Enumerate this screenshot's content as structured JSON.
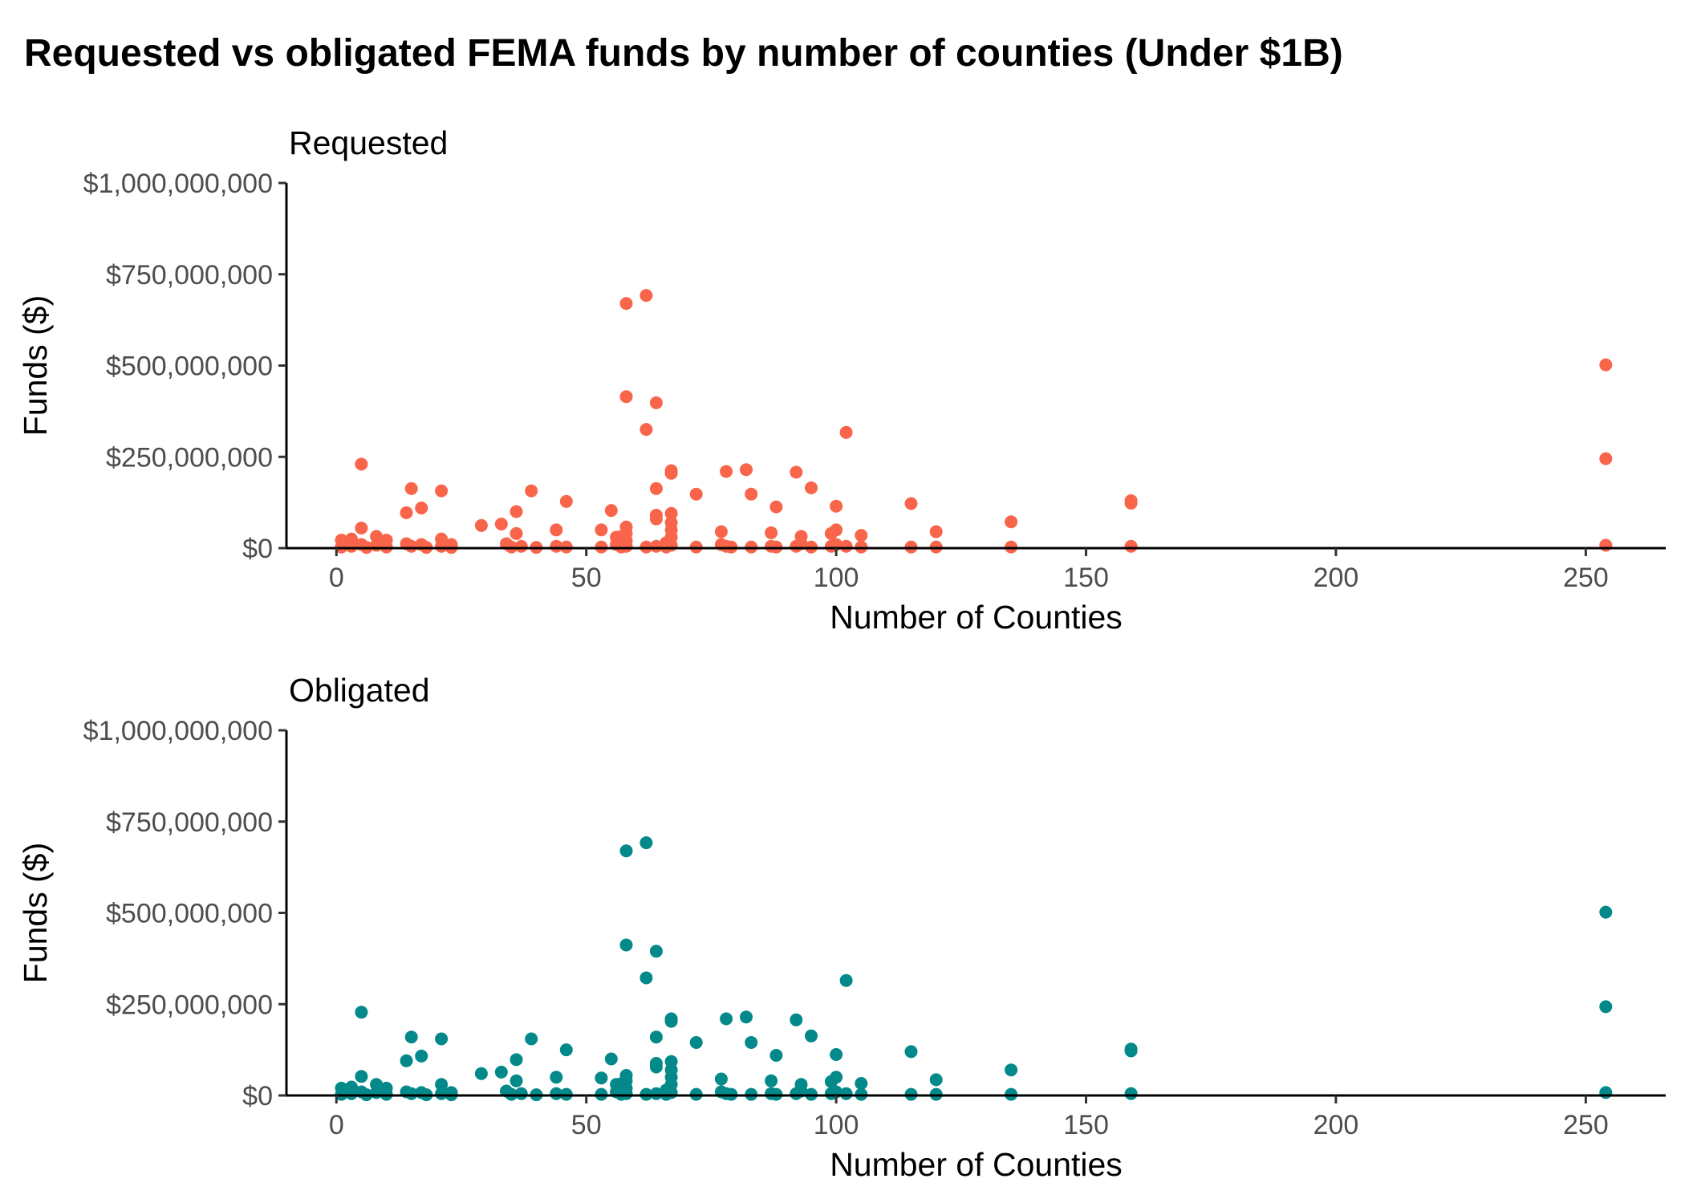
{
  "title": "Requested vs obligated FEMA funds by number of counties (Under $1B)",
  "chart_data": [
    {
      "type": "scatter",
      "title": "Requested",
      "xlabel": "Number of Counties",
      "ylabel": "Funds ($)",
      "color": "#F8654A",
      "xlim": [
        -10,
        266
      ],
      "ylim": [
        0,
        1000000000
      ],
      "xticks": [
        0,
        50,
        100,
        150,
        200,
        250
      ],
      "xtick_labels": [
        "0",
        "50",
        "100",
        "150",
        "200",
        "250"
      ],
      "yticks": [
        0,
        250000000,
        500000000,
        750000000,
        1000000000
      ],
      "ytick_labels": [
        "$0",
        "$250,000,000",
        "$500,000,000",
        "$750,000,000",
        "$1,000,000,000"
      ],
      "grid": false,
      "points": [
        {
          "x": 1,
          "y": 22000000
        },
        {
          "x": 1,
          "y": 3000000
        },
        {
          "x": 3,
          "y": 25000000
        },
        {
          "x": 3,
          "y": 5000000
        },
        {
          "x": 5,
          "y": 230000000
        },
        {
          "x": 5,
          "y": 55000000
        },
        {
          "x": 5,
          "y": 10000000
        },
        {
          "x": 6,
          "y": 2000000
        },
        {
          "x": 8,
          "y": 32000000
        },
        {
          "x": 8,
          "y": 8000000
        },
        {
          "x": 10,
          "y": 22000000
        },
        {
          "x": 10,
          "y": 3000000
        },
        {
          "x": 14,
          "y": 97000000
        },
        {
          "x": 14,
          "y": 12000000
        },
        {
          "x": 15,
          "y": 163000000
        },
        {
          "x": 15,
          "y": 5000000
        },
        {
          "x": 17,
          "y": 110000000
        },
        {
          "x": 17,
          "y": 10000000
        },
        {
          "x": 18,
          "y": 2000000
        },
        {
          "x": 21,
          "y": 157000000
        },
        {
          "x": 21,
          "y": 25000000
        },
        {
          "x": 21,
          "y": 5000000
        },
        {
          "x": 23,
          "y": 10000000
        },
        {
          "x": 23,
          "y": 2000000
        },
        {
          "x": 29,
          "y": 62000000
        },
        {
          "x": 33,
          "y": 66000000
        },
        {
          "x": 34,
          "y": 12000000
        },
        {
          "x": 35,
          "y": 3000000
        },
        {
          "x": 36,
          "y": 100000000
        },
        {
          "x": 36,
          "y": 40000000
        },
        {
          "x": 37,
          "y": 5000000
        },
        {
          "x": 39,
          "y": 157000000
        },
        {
          "x": 40,
          "y": 2000000
        },
        {
          "x": 44,
          "y": 50000000
        },
        {
          "x": 44,
          "y": 5000000
        },
        {
          "x": 46,
          "y": 128000000
        },
        {
          "x": 46,
          "y": 3000000
        },
        {
          "x": 53,
          "y": 50000000
        },
        {
          "x": 53,
          "y": 3000000
        },
        {
          "x": 55,
          "y": 103000000
        },
        {
          "x": 56,
          "y": 30000000
        },
        {
          "x": 56,
          "y": 10000000
        },
        {
          "x": 57,
          "y": 32000000
        },
        {
          "x": 57,
          "y": 3000000
        },
        {
          "x": 58,
          "y": 670000000
        },
        {
          "x": 58,
          "y": 415000000
        },
        {
          "x": 58,
          "y": 58000000
        },
        {
          "x": 58,
          "y": 40000000
        },
        {
          "x": 58,
          "y": 20000000
        },
        {
          "x": 58,
          "y": 5000000
        },
        {
          "x": 62,
          "y": 692000000
        },
        {
          "x": 62,
          "y": 325000000
        },
        {
          "x": 62,
          "y": 3000000
        },
        {
          "x": 64,
          "y": 398000000
        },
        {
          "x": 64,
          "y": 163000000
        },
        {
          "x": 64,
          "y": 90000000
        },
        {
          "x": 64,
          "y": 80000000
        },
        {
          "x": 64,
          "y": 5000000
        },
        {
          "x": 66,
          "y": 15000000
        },
        {
          "x": 66,
          "y": 3000000
        },
        {
          "x": 67,
          "y": 212000000
        },
        {
          "x": 67,
          "y": 205000000
        },
        {
          "x": 67,
          "y": 95000000
        },
        {
          "x": 67,
          "y": 70000000
        },
        {
          "x": 67,
          "y": 50000000
        },
        {
          "x": 67,
          "y": 30000000
        },
        {
          "x": 67,
          "y": 8000000
        },
        {
          "x": 72,
          "y": 148000000
        },
        {
          "x": 72,
          "y": 3000000
        },
        {
          "x": 77,
          "y": 45000000
        },
        {
          "x": 77,
          "y": 10000000
        },
        {
          "x": 78,
          "y": 210000000
        },
        {
          "x": 78,
          "y": 5000000
        },
        {
          "x": 79,
          "y": 3000000
        },
        {
          "x": 82,
          "y": 215000000
        },
        {
          "x": 83,
          "y": 148000000
        },
        {
          "x": 83,
          "y": 3000000
        },
        {
          "x": 87,
          "y": 42000000
        },
        {
          "x": 87,
          "y": 5000000
        },
        {
          "x": 88,
          "y": 113000000
        },
        {
          "x": 88,
          "y": 3000000
        },
        {
          "x": 92,
          "y": 208000000
        },
        {
          "x": 92,
          "y": 5000000
        },
        {
          "x": 93,
          "y": 32000000
        },
        {
          "x": 93,
          "y": 12000000
        },
        {
          "x": 95,
          "y": 165000000
        },
        {
          "x": 95,
          "y": 3000000
        },
        {
          "x": 99,
          "y": 40000000
        },
        {
          "x": 99,
          "y": 5000000
        },
        {
          "x": 100,
          "y": 115000000
        },
        {
          "x": 100,
          "y": 50000000
        },
        {
          "x": 100,
          "y": 10000000
        },
        {
          "x": 102,
          "y": 317000000
        },
        {
          "x": 102,
          "y": 5000000
        },
        {
          "x": 105,
          "y": 35000000
        },
        {
          "x": 105,
          "y": 3000000
        },
        {
          "x": 115,
          "y": 122000000
        },
        {
          "x": 115,
          "y": 3000000
        },
        {
          "x": 120,
          "y": 45000000
        },
        {
          "x": 120,
          "y": 3000000
        },
        {
          "x": 135,
          "y": 72000000
        },
        {
          "x": 135,
          "y": 3000000
        },
        {
          "x": 159,
          "y": 130000000
        },
        {
          "x": 159,
          "y": 123000000
        },
        {
          "x": 159,
          "y": 5000000
        },
        {
          "x": 254,
          "y": 502000000
        },
        {
          "x": 254,
          "y": 245000000
        },
        {
          "x": 254,
          "y": 8000000
        }
      ]
    },
    {
      "type": "scatter",
      "title": "Obligated",
      "xlabel": "Number of Counties",
      "ylabel": "Funds ($)",
      "color": "#03898A",
      "xlim": [
        -10,
        266
      ],
      "ylim": [
        0,
        1000000000
      ],
      "xticks": [
        0,
        50,
        100,
        150,
        200,
        250
      ],
      "xtick_labels": [
        "0",
        "50",
        "100",
        "150",
        "200",
        "250"
      ],
      "yticks": [
        0,
        250000000,
        500000000,
        750000000,
        1000000000
      ],
      "ytick_labels": [
        "$0",
        "$250,000,000",
        "$500,000,000",
        "$750,000,000",
        "$1,000,000,000"
      ],
      "grid": false,
      "points": [
        {
          "x": 1,
          "y": 20000000
        },
        {
          "x": 1,
          "y": 3000000
        },
        {
          "x": 3,
          "y": 23000000
        },
        {
          "x": 3,
          "y": 5000000
        },
        {
          "x": 5,
          "y": 228000000
        },
        {
          "x": 5,
          "y": 52000000
        },
        {
          "x": 5,
          "y": 10000000
        },
        {
          "x": 6,
          "y": 2000000
        },
        {
          "x": 8,
          "y": 30000000
        },
        {
          "x": 8,
          "y": 8000000
        },
        {
          "x": 10,
          "y": 20000000
        },
        {
          "x": 10,
          "y": 3000000
        },
        {
          "x": 14,
          "y": 95000000
        },
        {
          "x": 14,
          "y": 10000000
        },
        {
          "x": 15,
          "y": 160000000
        },
        {
          "x": 15,
          "y": 5000000
        },
        {
          "x": 17,
          "y": 108000000
        },
        {
          "x": 17,
          "y": 8000000
        },
        {
          "x": 18,
          "y": 2000000
        },
        {
          "x": 21,
          "y": 155000000
        },
        {
          "x": 21,
          "y": 30000000
        },
        {
          "x": 21,
          "y": 5000000
        },
        {
          "x": 23,
          "y": 8000000
        },
        {
          "x": 23,
          "y": 2000000
        },
        {
          "x": 29,
          "y": 60000000
        },
        {
          "x": 33,
          "y": 64000000
        },
        {
          "x": 34,
          "y": 12000000
        },
        {
          "x": 35,
          "y": 3000000
        },
        {
          "x": 36,
          "y": 98000000
        },
        {
          "x": 36,
          "y": 40000000
        },
        {
          "x": 37,
          "y": 5000000
        },
        {
          "x": 39,
          "y": 155000000
        },
        {
          "x": 40,
          "y": 2000000
        },
        {
          "x": 44,
          "y": 50000000
        },
        {
          "x": 44,
          "y": 5000000
        },
        {
          "x": 46,
          "y": 125000000
        },
        {
          "x": 46,
          "y": 3000000
        },
        {
          "x": 53,
          "y": 48000000
        },
        {
          "x": 53,
          "y": 3000000
        },
        {
          "x": 55,
          "y": 100000000
        },
        {
          "x": 56,
          "y": 30000000
        },
        {
          "x": 56,
          "y": 10000000
        },
        {
          "x": 57,
          "y": 32000000
        },
        {
          "x": 57,
          "y": 3000000
        },
        {
          "x": 58,
          "y": 670000000
        },
        {
          "x": 58,
          "y": 412000000
        },
        {
          "x": 58,
          "y": 55000000
        },
        {
          "x": 58,
          "y": 40000000
        },
        {
          "x": 58,
          "y": 20000000
        },
        {
          "x": 58,
          "y": 5000000
        },
        {
          "x": 62,
          "y": 692000000
        },
        {
          "x": 62,
          "y": 322000000
        },
        {
          "x": 62,
          "y": 3000000
        },
        {
          "x": 64,
          "y": 395000000
        },
        {
          "x": 64,
          "y": 160000000
        },
        {
          "x": 64,
          "y": 88000000
        },
        {
          "x": 64,
          "y": 78000000
        },
        {
          "x": 64,
          "y": 5000000
        },
        {
          "x": 66,
          "y": 15000000
        },
        {
          "x": 66,
          "y": 3000000
        },
        {
          "x": 67,
          "y": 210000000
        },
        {
          "x": 67,
          "y": 203000000
        },
        {
          "x": 67,
          "y": 93000000
        },
        {
          "x": 67,
          "y": 70000000
        },
        {
          "x": 67,
          "y": 50000000
        },
        {
          "x": 67,
          "y": 30000000
        },
        {
          "x": 67,
          "y": 8000000
        },
        {
          "x": 72,
          "y": 145000000
        },
        {
          "x": 72,
          "y": 3000000
        },
        {
          "x": 77,
          "y": 45000000
        },
        {
          "x": 77,
          "y": 10000000
        },
        {
          "x": 78,
          "y": 210000000
        },
        {
          "x": 78,
          "y": 5000000
        },
        {
          "x": 79,
          "y": 3000000
        },
        {
          "x": 82,
          "y": 215000000
        },
        {
          "x": 83,
          "y": 145000000
        },
        {
          "x": 83,
          "y": 3000000
        },
        {
          "x": 87,
          "y": 40000000
        },
        {
          "x": 87,
          "y": 5000000
        },
        {
          "x": 88,
          "y": 110000000
        },
        {
          "x": 88,
          "y": 3000000
        },
        {
          "x": 92,
          "y": 207000000
        },
        {
          "x": 92,
          "y": 5000000
        },
        {
          "x": 93,
          "y": 30000000
        },
        {
          "x": 93,
          "y": 12000000
        },
        {
          "x": 95,
          "y": 163000000
        },
        {
          "x": 95,
          "y": 3000000
        },
        {
          "x": 99,
          "y": 38000000
        },
        {
          "x": 99,
          "y": 5000000
        },
        {
          "x": 100,
          "y": 112000000
        },
        {
          "x": 100,
          "y": 50000000
        },
        {
          "x": 100,
          "y": 10000000
        },
        {
          "x": 102,
          "y": 315000000
        },
        {
          "x": 102,
          "y": 5000000
        },
        {
          "x": 105,
          "y": 33000000
        },
        {
          "x": 105,
          "y": 3000000
        },
        {
          "x": 115,
          "y": 120000000
        },
        {
          "x": 115,
          "y": 3000000
        },
        {
          "x": 120,
          "y": 43000000
        },
        {
          "x": 120,
          "y": 3000000
        },
        {
          "x": 135,
          "y": 70000000
        },
        {
          "x": 135,
          "y": 3000000
        },
        {
          "x": 159,
          "y": 127000000
        },
        {
          "x": 159,
          "y": 122000000
        },
        {
          "x": 159,
          "y": 5000000
        },
        {
          "x": 254,
          "y": 502000000
        },
        {
          "x": 254,
          "y": 243000000
        },
        {
          "x": 254,
          "y": 8000000
        }
      ]
    }
  ]
}
